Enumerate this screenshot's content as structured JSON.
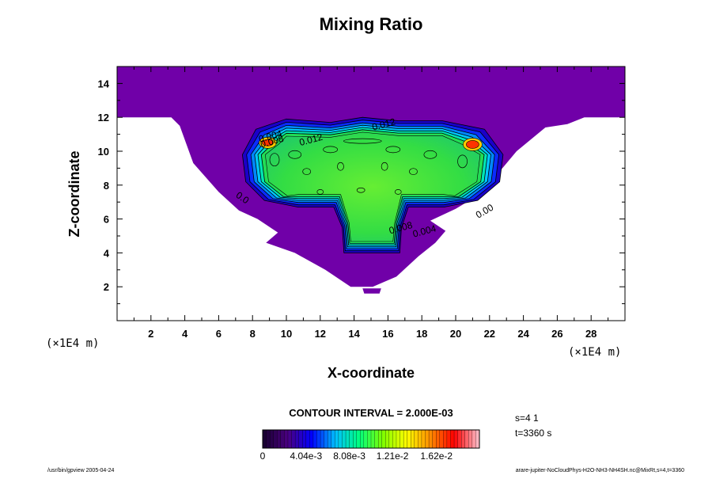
{
  "chart_data": {
    "type": "contour",
    "title": "Mixing Ratio",
    "xlabel": "X-coordinate",
    "ylabel": "Z-coordinate",
    "x_units": "(×1E4 m)",
    "z_units": "(×1E4 m)",
    "xlim": [
      0,
      30
    ],
    "ylim": [
      0,
      15
    ],
    "xticks": [
      "2",
      "4",
      "6",
      "8",
      "10",
      "12",
      "14",
      "16",
      "18",
      "20",
      "22",
      "24",
      "26",
      "28"
    ],
    "yticks": [
      "2",
      "4",
      "6",
      "8",
      "10",
      "12",
      "14"
    ],
    "contour_interval_text": "CONTOUR INTERVAL = 2.000E-03",
    "contour_labels": [
      {
        "text": "0.004",
        "x": 9.1,
        "z": 10.7
      },
      {
        "text": "0.008",
        "x": 9.2,
        "z": 10.4
      },
      {
        "text": "0.012",
        "x": 11.5,
        "z": 10.5
      },
      {
        "text": "0.012",
        "x": 15.8,
        "z": 11.4
      },
      {
        "text": "0.0",
        "x": 7.3,
        "z": 7.1
      },
      {
        "text": "0.008",
        "x": 16.8,
        "z": 5.3
      },
      {
        "text": "0.004",
        "x": 18.2,
        "z": 5.1
      },
      {
        "text": "0.00",
        "x": 21.8,
        "z": 6.3
      }
    ],
    "colorbar": {
      "min": 0,
      "max": 0.0202,
      "labels": [
        "0",
        "4.04e-3",
        "8.08e-3",
        "1.21e-2",
        "1.62e-2"
      ],
      "colormap": [
        "#1a0033",
        "#4b0082",
        "#0000ff",
        "#00bfff",
        "#00ff7f",
        "#7fff00",
        "#ffff00",
        "#ff8c00",
        "#ff0000",
        "#ffb6c1"
      ]
    },
    "colors": {
      "outside_fill": "#7000a8",
      "inner_ring": "#0000cc",
      "cloud_core": "#44ee22",
      "max_patch": "#ff3300"
    }
  },
  "annotations": {
    "step": "s=4 1",
    "time": "t=3360 s",
    "footer_left": "/usr/bin/gpview 2005-04-24",
    "footer_right": "arare-jupiter-NoCloudPhys-H2O-NH3-NH4SH.nc@MixRt,s=4,t=3360"
  }
}
